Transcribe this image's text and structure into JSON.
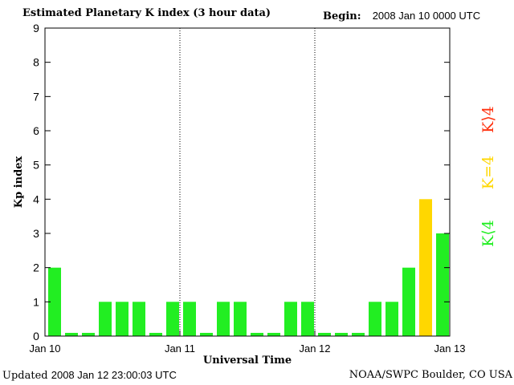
{
  "header": {
    "title": "Estimated Planetary K index (3 hour data)",
    "begin_label": "Begin:",
    "begin_value": "2008 Jan 10 0000 UTC"
  },
  "footer": {
    "updated_label": "Updated",
    "updated_value": "2008 Jan 12 23:00:03 UTC",
    "credit": "NOAA/SWPC Boulder, CO USA"
  },
  "legend": {
    "high": "K⟩4",
    "equal": "K=4",
    "low": "K⟨4"
  },
  "colors": {
    "low": "#22ee22",
    "equal": "#ffd700",
    "high": "#ff3311",
    "axis": "#000000"
  },
  "chart_data": {
    "type": "bar",
    "title": "Estimated Planetary K index (3 hour data)",
    "xlabel": "Universal Time",
    "ylabel": "Kp index",
    "ylim": [
      0,
      9
    ],
    "yticks": [
      "0",
      "1",
      "2",
      "3",
      "4",
      "5",
      "6",
      "7",
      "8",
      "9"
    ],
    "xticks": [
      "Jan 10",
      "Jan 11",
      "Jan 12",
      "Jan 13"
    ],
    "values": [
      2,
      0,
      0,
      1,
      1,
      1,
      0,
      1,
      1,
      0,
      1,
      1,
      0,
      0,
      1,
      1,
      0,
      0,
      0,
      1,
      1,
      2,
      4,
      3
    ],
    "grid": false,
    "day_separators": "dotted"
  }
}
